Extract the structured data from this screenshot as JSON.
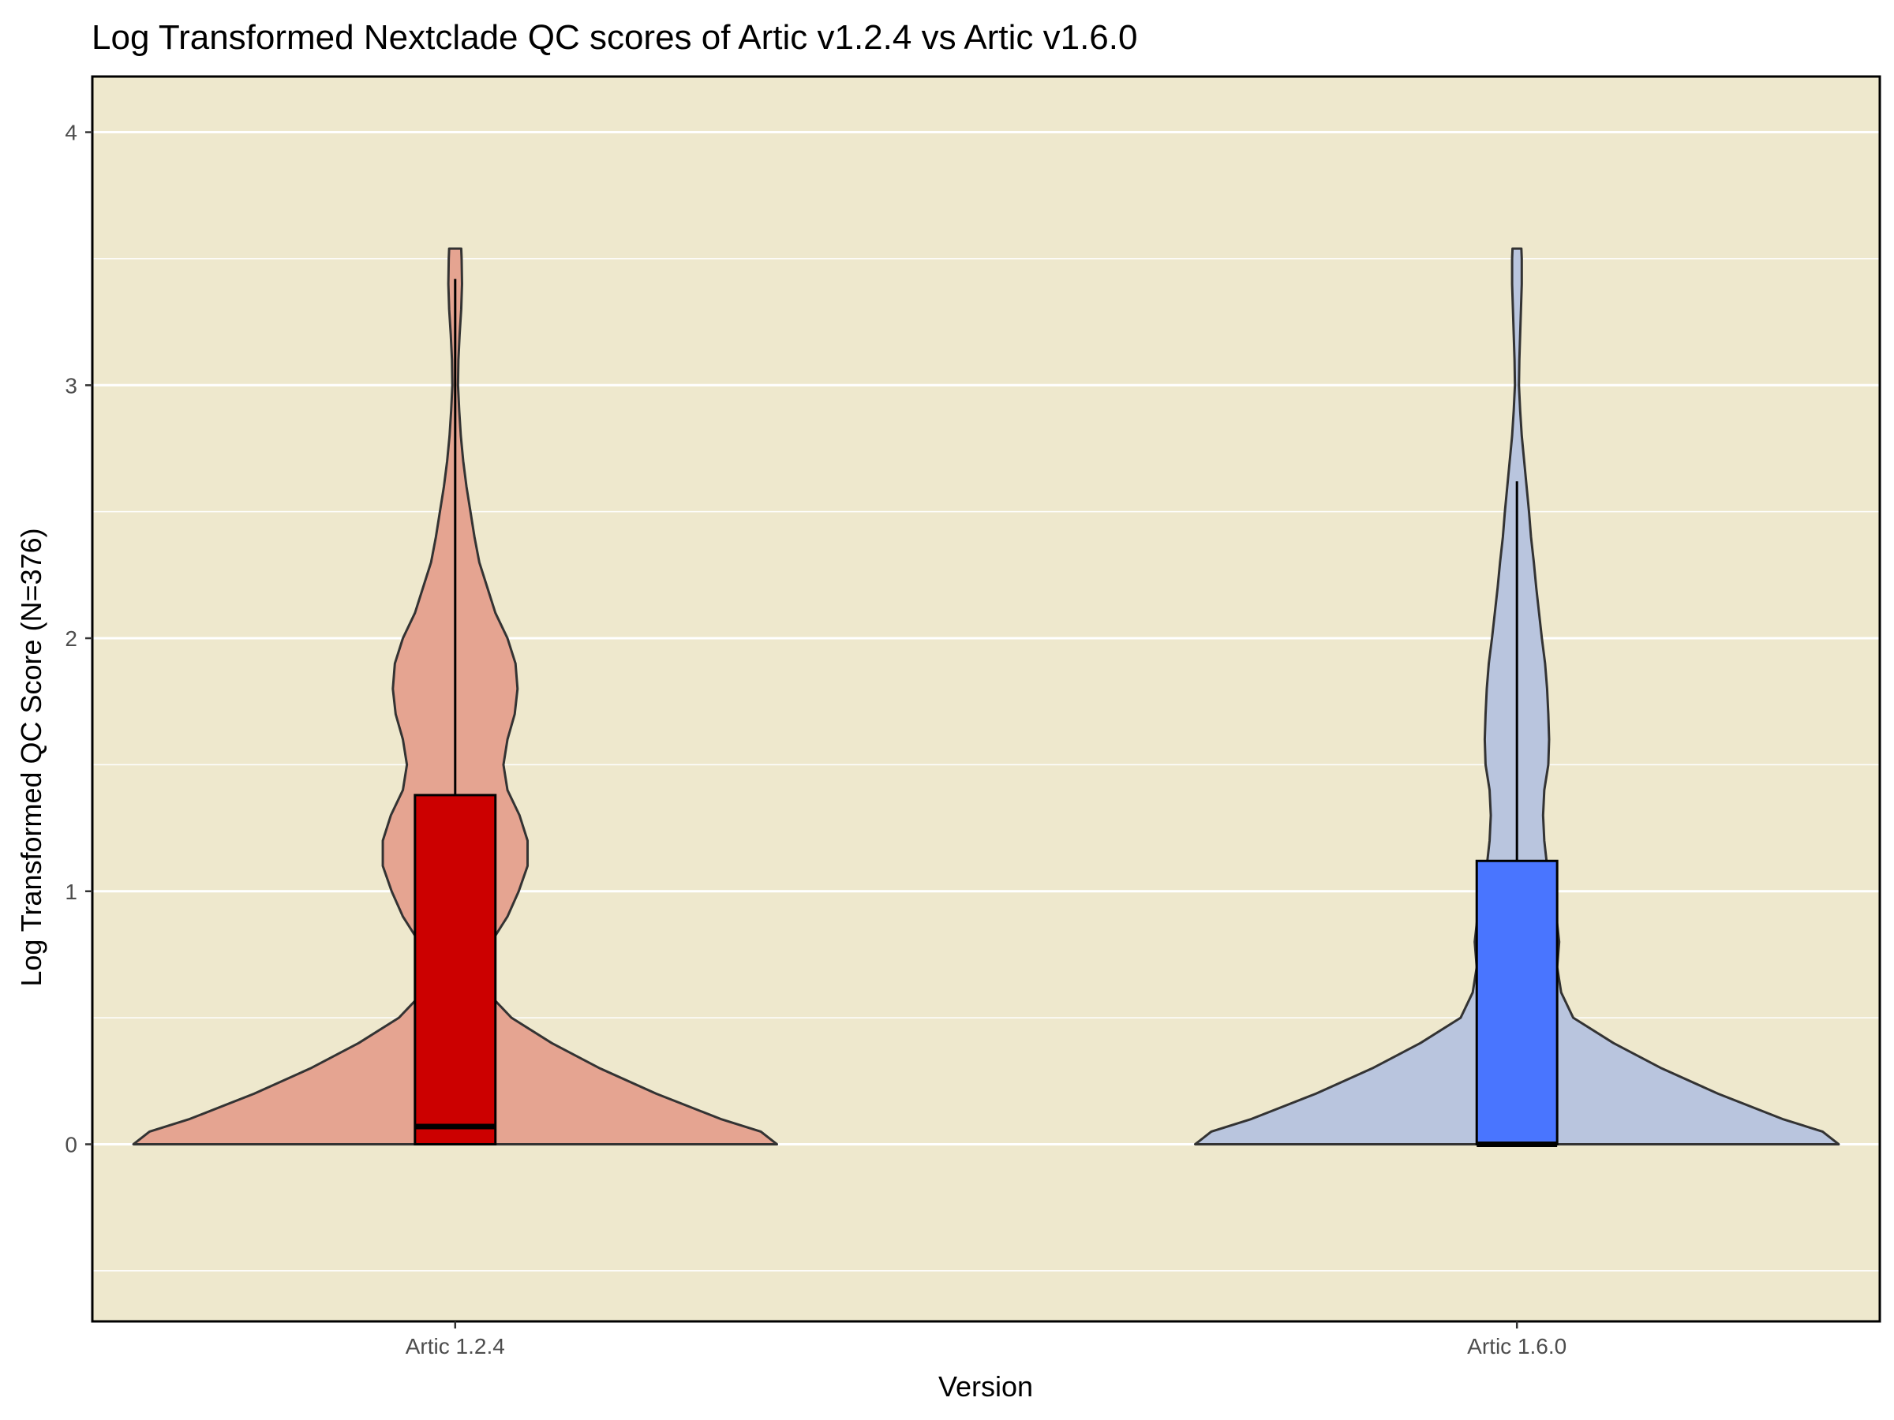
{
  "chart_data": {
    "type": "violin",
    "title": "Log Transformed Nextclade QC scores of Artic v1.2.4 vs Artic v1.6.0",
    "xlabel": "Version",
    "ylabel": "Log Transformed QC Score (N=376)",
    "categories": [
      "Artic 1.2.4",
      "Artic 1.6.0"
    ],
    "ylim": [
      -0.7,
      4.22
    ],
    "yticks": [
      0,
      1,
      2,
      3,
      4
    ],
    "ytick_labels": [
      "0",
      "1",
      "2",
      "3",
      "4"
    ],
    "grid": true,
    "legend": "none",
    "panel_background": "#EEE8CD",
    "series": [
      {
        "category": "Artic 1.2.4",
        "violin_fill": "#E5A491",
        "box_fill": "#CC0000",
        "box": {
          "q1": 0.0,
          "median": 0.07,
          "q3": 1.38,
          "whisker_low": 0.0,
          "whisker_high": 3.42
        },
        "density": [
          [
            0.0,
            0.8
          ],
          [
            0.05,
            0.76
          ],
          [
            0.1,
            0.66
          ],
          [
            0.2,
            0.5
          ],
          [
            0.3,
            0.36
          ],
          [
            0.4,
            0.24
          ],
          [
            0.5,
            0.14
          ],
          [
            0.6,
            0.08
          ],
          [
            0.7,
            0.06
          ],
          [
            0.8,
            0.09
          ],
          [
            0.9,
            0.13
          ],
          [
            1.0,
            0.158
          ],
          [
            1.1,
            0.18
          ],
          [
            1.2,
            0.18
          ],
          [
            1.3,
            0.16
          ],
          [
            1.4,
            0.13
          ],
          [
            1.5,
            0.12
          ],
          [
            1.6,
            0.13
          ],
          [
            1.7,
            0.148
          ],
          [
            1.8,
            0.155
          ],
          [
            1.9,
            0.15
          ],
          [
            2.0,
            0.13
          ],
          [
            2.1,
            0.1
          ],
          [
            2.2,
            0.08
          ],
          [
            2.3,
            0.06
          ],
          [
            2.4,
            0.048
          ],
          [
            2.5,
            0.038
          ],
          [
            2.6,
            0.028
          ],
          [
            2.7,
            0.02
          ],
          [
            2.8,
            0.014
          ],
          [
            2.9,
            0.01
          ],
          [
            3.0,
            0.007
          ],
          [
            3.1,
            0.008
          ],
          [
            3.2,
            0.011
          ],
          [
            3.3,
            0.015
          ],
          [
            3.4,
            0.017
          ],
          [
            3.5,
            0.016
          ],
          [
            3.54,
            0.015
          ]
        ]
      },
      {
        "category": "Artic 1.6.0",
        "violin_fill": "#B9C5DE",
        "box_fill": "#4975FF",
        "box": {
          "q1": 0.0,
          "median": 0.0,
          "q3": 1.12,
          "whisker_low": 0.0,
          "whisker_high": 2.62
        },
        "density": [
          [
            0.0,
            0.8
          ],
          [
            0.05,
            0.76
          ],
          [
            0.1,
            0.66
          ],
          [
            0.2,
            0.5
          ],
          [
            0.3,
            0.36
          ],
          [
            0.4,
            0.24
          ],
          [
            0.5,
            0.14
          ],
          [
            0.6,
            0.11
          ],
          [
            0.7,
            0.1
          ],
          [
            0.8,
            0.105
          ],
          [
            0.9,
            0.098
          ],
          [
            1.0,
            0.085
          ],
          [
            1.1,
            0.075
          ],
          [
            1.2,
            0.068
          ],
          [
            1.3,
            0.065
          ],
          [
            1.4,
            0.068
          ],
          [
            1.5,
            0.078
          ],
          [
            1.6,
            0.08
          ],
          [
            1.7,
            0.078
          ],
          [
            1.8,
            0.075
          ],
          [
            1.9,
            0.07
          ],
          [
            2.0,
            0.062
          ],
          [
            2.1,
            0.055
          ],
          [
            2.2,
            0.048
          ],
          [
            2.3,
            0.042
          ],
          [
            2.4,
            0.035
          ],
          [
            2.5,
            0.03
          ],
          [
            2.6,
            0.024
          ],
          [
            2.7,
            0.018
          ],
          [
            2.8,
            0.012
          ],
          [
            2.9,
            0.008
          ],
          [
            3.0,
            0.005
          ],
          [
            3.1,
            0.006
          ],
          [
            3.2,
            0.008
          ],
          [
            3.3,
            0.01
          ],
          [
            3.4,
            0.012
          ],
          [
            3.5,
            0.012
          ],
          [
            3.54,
            0.011
          ]
        ]
      }
    ]
  }
}
